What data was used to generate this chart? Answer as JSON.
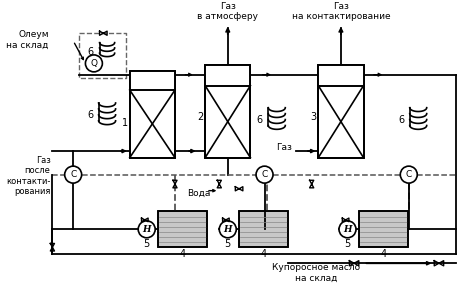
{
  "title": "",
  "bg_color": "#ffffff",
  "line_color": "#000000",
  "dashed_color": "#555555",
  "text_labels": {
    "oleum": "Олеум\nна склад",
    "gaz_atmosfera": "Газ\nв атмосферу",
    "gaz_kontakt": "Газ\nна контактирование",
    "gaz_posle": "Газ\nпосле\nконтакти-\nрования",
    "gaz_right": "Газ",
    "voda": "Вода",
    "kuporosnoe": "Купоросное масло\nна склад"
  },
  "figsize": [
    4.65,
    2.96
  ],
  "dpi": 100
}
